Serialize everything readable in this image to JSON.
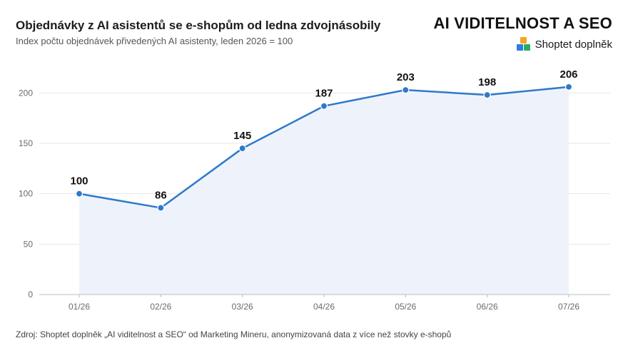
{
  "header": {
    "title": "Objednávky z AI asistentů se e-shopům od ledna zdvojnásobily",
    "subtitle": "Index počtu objednávek přivedených AI asistenty, leden 2026 = 100"
  },
  "brand": {
    "title": "AI VIDITELNOST A SEO",
    "name": "Shoptet doplněk",
    "logo_icon": "shoptet-squares-icon",
    "logo_colors": [
      "#f5a623",
      "#2e7de0",
      "#27ae60"
    ]
  },
  "source": "Zdroj: Shoptet doplněk „AI viditelnost a SEO“ od Marketing Mineru, anonymizovaná data z více než stovky e-shopů",
  "colors": {
    "line": "#2f79c9",
    "area": "#eef3fb",
    "grid": "#e6e6e6",
    "axis": "#bdbdbd"
  },
  "chart_data": {
    "type": "line",
    "categories": [
      "01/26",
      "02/26",
      "03/26",
      "04/26",
      "05/26",
      "06/26",
      "07/26"
    ],
    "values": [
      100,
      86,
      145,
      187,
      203,
      198,
      206
    ],
    "data_labels": [
      "100",
      "86",
      "145",
      "187",
      "203",
      "198",
      "206"
    ],
    "yticks": [
      0,
      50,
      100,
      150,
      200
    ],
    "ylim": [
      0,
      225
    ],
    "grid": true,
    "area_fill": true,
    "markers": true
  }
}
